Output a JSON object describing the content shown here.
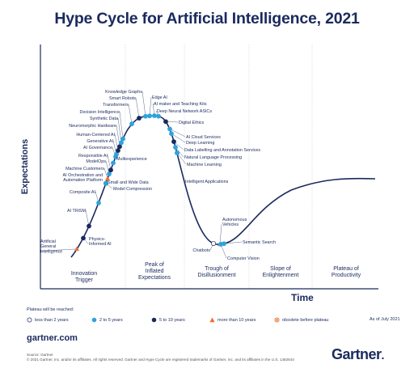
{
  "title": "Hype Cycle for Artificial Intelligence, 2021",
  "colors": {
    "navy": "#1a2a5e",
    "lightblue": "#2ea3dc",
    "orange": "#f26b2a",
    "curve": "#1a2a5e",
    "divider": "#c9cfdc"
  },
  "chart_data": {
    "type": "scatter",
    "title": "Hype Cycle for Artificial Intelligence, 2021",
    "xlabel": "Time",
    "ylabel": "Expectations",
    "phases": [
      {
        "lines": [
          "Innovation",
          "Trigger"
        ]
      },
      {
        "lines": [
          "Peak of",
          "Inflated",
          "Expectations"
        ]
      },
      {
        "lines": [
          "Trough of",
          "Disillusionment"
        ]
      },
      {
        "lines": [
          "Slope of",
          "Enlightenment"
        ]
      },
      {
        "lines": [
          "Plateau of",
          "Productivity"
        ]
      }
    ],
    "points": [
      {
        "label": "Artificial General Intelligence",
        "lines": [
          "Artificial",
          "General",
          "Intelligence"
        ],
        "category": "more than 10 years",
        "side": "left"
      },
      {
        "label": "Physics-Informed AI",
        "lines": [
          "Physics-",
          "Informed AI"
        ],
        "category": "5 to 10 years",
        "side": "right"
      },
      {
        "label": "AI TRiSM",
        "lines": [
          "AI TRiSM"
        ],
        "category": "5 to 10 years",
        "side": "left"
      },
      {
        "label": "Composite AI",
        "lines": [
          "Composite AI"
        ],
        "category": "2 to 5 years",
        "side": "left"
      },
      {
        "label": "Small and Wide Data",
        "lines": [
          "Small and Wide Data"
        ],
        "category": "2 to 5 years",
        "side": "right"
      },
      {
        "label": "Model Compression",
        "lines": [
          "Model Compression"
        ],
        "category": "5 to 10 years",
        "side": "right"
      },
      {
        "label": "AI Orchestration and Automation Platform",
        "lines": [
          "AI Orchestration and",
          "Automation Platform"
        ],
        "category": "2 to 5 years",
        "side": "left"
      },
      {
        "label": "Machine Customers",
        "lines": [
          "Machine Customers"
        ],
        "category": "more than 10 years",
        "side": "left"
      },
      {
        "label": "ModelOps",
        "lines": [
          "ModelOps"
        ],
        "category": "2 to 5 years",
        "side": "left"
      },
      {
        "label": "Responsible AI",
        "lines": [
          "Responsible AI"
        ],
        "category": "5 to 10 years",
        "side": "left"
      },
      {
        "label": "Multiexperience",
        "lines": [
          "Multiexperience"
        ],
        "category": "2 to 5 years",
        "side": "right"
      },
      {
        "label": "AI Governance",
        "lines": [
          "AI Governance"
        ],
        "category": "2 to 5 years",
        "side": "left"
      },
      {
        "label": "Generative AI",
        "lines": [
          "Generative AI"
        ],
        "category": "2 to 5 years",
        "side": "left"
      },
      {
        "label": "Human-Centered AI",
        "lines": [
          "Human-Centered AI"
        ],
        "category": "5 to 10 years",
        "side": "left"
      },
      {
        "label": "Neuromorphic Hardware",
        "lines": [
          "Neuromorphic Hardware"
        ],
        "category": "5 to 10 years",
        "side": "left"
      },
      {
        "label": "Synthetic Data",
        "lines": [
          "Synthetic Data"
        ],
        "category": "2 to 5 years",
        "side": "left"
      },
      {
        "label": "Decision Intelligence",
        "lines": [
          "Decision Intelligence"
        ],
        "category": "2 to 5 years",
        "side": "left"
      },
      {
        "label": "Transformers",
        "lines": [
          "Transformers"
        ],
        "category": "2 to 5 years",
        "side": "left"
      },
      {
        "label": "Smart Robots",
        "lines": [
          "Smart Robots"
        ],
        "category": "5 to 10 years",
        "side": "left"
      },
      {
        "label": "Knowledge Graphs",
        "lines": [
          "Knowledge Graphs"
        ],
        "category": "2 to 5 years",
        "side": "left"
      },
      {
        "label": "Edge AI",
        "lines": [
          "Edge AI"
        ],
        "category": "2 to 5 years",
        "side": "right"
      },
      {
        "label": "AI maker and Teaching Kits",
        "lines": [
          "AI maker and Teaching Kits"
        ],
        "category": "2 to 5 years",
        "side": "right"
      },
      {
        "label": "Deep Neural Network ASICs",
        "lines": [
          "Deep Neural Network ASICs"
        ],
        "category": "2 to 5 years",
        "side": "right"
      },
      {
        "label": "Digital Ethics",
        "lines": [
          "Digital Ethics"
        ],
        "category": "5 to 10 years",
        "side": "right"
      },
      {
        "label": "AI Cloud Services",
        "lines": [
          "AI Cloud Services"
        ],
        "category": "2 to 5 years",
        "side": "right"
      },
      {
        "label": "Deep Learning",
        "lines": [
          "Deep Learning"
        ],
        "category": "2 to 5 years",
        "side": "right"
      },
      {
        "label": "Data Labelling and Annotation Services",
        "lines": [
          "Data Labelling and Annotation Services"
        ],
        "category": "5 to 10 years",
        "side": "right"
      },
      {
        "label": "Natural Language Processing",
        "lines": [
          "Natural Language Processing"
        ],
        "category": "2 to 5 years",
        "side": "right"
      },
      {
        "label": "Machine Learning",
        "lines": [
          "Machine Learning"
        ],
        "category": "2 to 5 years",
        "side": "right"
      },
      {
        "label": "Intelligent Applications",
        "lines": [
          "Intelligent Applications"
        ],
        "category": "2 to 5 years",
        "side": "right"
      },
      {
        "label": "Chatbots",
        "lines": [
          "Chatbots"
        ],
        "category": "less than 2 years",
        "side": "left"
      },
      {
        "label": "Autonomous Vehicles",
        "lines": [
          "Autonomous",
          "Vehicles"
        ],
        "category": "more than 10 years",
        "side": "right"
      },
      {
        "label": "Computer Vision",
        "lines": [
          "Computer Vision"
        ],
        "category": "2 to 5 years",
        "side": "right"
      },
      {
        "label": "Semantic Search",
        "lines": [
          "Semantic Search"
        ],
        "category": "2 to 5 years",
        "side": "right"
      }
    ]
  },
  "legend": {
    "title": "Plateau will be reached:",
    "items": [
      {
        "label": "less than 2 years",
        "marker": "circle-outline"
      },
      {
        "label": "2 to 5 years",
        "marker": "circle-lightblue"
      },
      {
        "label": "5 to 10 years",
        "marker": "circle-navy"
      },
      {
        "label": "more than 10 years",
        "marker": "triangle-orange"
      },
      {
        "label": "obsolete before plateau",
        "marker": "crossed-circle"
      }
    ],
    "date": "As of July 2021"
  },
  "site": "gartner.com",
  "footer": {
    "source": "Source: Gartner",
    "copyright": "© 2021 Gartner, Inc. and/or its affiliates. All rights reserved. Gartner and Hype Cycle are registered trademarks of Gartner, Inc. and its affiliates in the U.S. 1482644"
  },
  "brand": "Gartner"
}
